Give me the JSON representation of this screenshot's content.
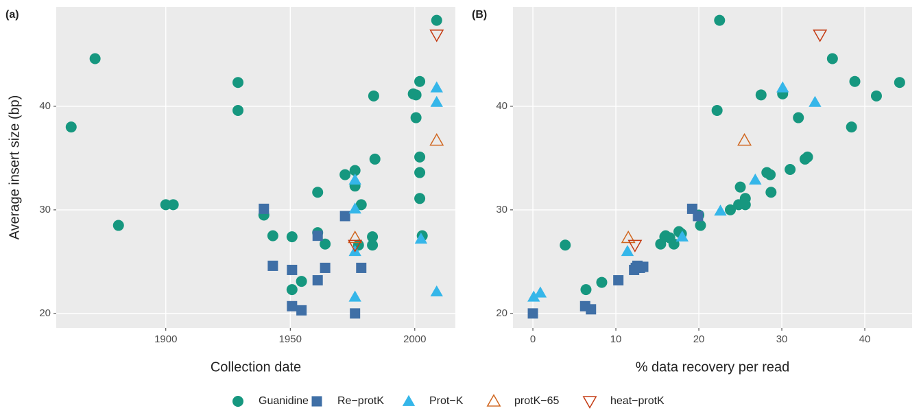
{
  "chart_data": [
    {
      "type": "scatter",
      "title": "(a)",
      "x_label": "Collection date",
      "y_label": "Average insert size (bp)",
      "xlim": [
        1856,
        2016.3
      ],
      "ylim": [
        18.6,
        49.6
      ],
      "xticks": [
        1900,
        1950,
        2000
      ],
      "yticks": [
        20,
        30,
        40
      ],
      "grid": true,
      "series": [
        {
          "name": "Guanidine",
          "color": "#16977f",
          "marker": "circle",
          "x": [
            1862,
            1871.6,
            1881,
            1900,
            1903,
            1929,
            1929,
            1939.4,
            1943,
            1950.7,
            1950.7,
            1954.5,
            1961,
            1961,
            1964,
            1972,
            1976,
            1976,
            1978.5,
            1977.4,
            1983.5,
            1984,
            1983,
            1983,
            1999.4,
            2000.5,
            2000.5,
            2002,
            2002,
            2002,
            2002,
            2003,
            2008.8
          ],
          "values": [
            38.0,
            44.6,
            28.5,
            30.5,
            30.5,
            42.3,
            39.6,
            29.5,
            27.5,
            27.4,
            22.3,
            23.1,
            31.7,
            27.8,
            26.7,
            33.4,
            33.8,
            32.3,
            30.5,
            26.6,
            41.0,
            34.9,
            27.4,
            26.6,
            41.2,
            41.1,
            38.9,
            42.4,
            35.1,
            33.6,
            31.1,
            27.5,
            48.3
          ]
        },
        {
          "name": "Re−protK",
          "color": "#3f6fa6",
          "marker": "square",
          "x": [
            1939.4,
            1943,
            1950.7,
            1950.7,
            1954.5,
            1961,
            1961,
            1964,
            1972,
            1976,
            1978.5
          ],
          "values": [
            30.1,
            24.6,
            24.2,
            20.7,
            20.3,
            27.5,
            23.2,
            24.4,
            29.4,
            20.0,
            24.4
          ]
        },
        {
          "name": "Prot−K",
          "color": "#35b6e9",
          "marker": "triangle",
          "x": [
            1976,
            1976,
            1976,
            1976,
            2002.5,
            2008.8,
            2008.8,
            2008.8
          ],
          "values": [
            32.9,
            30.1,
            26.0,
            21.6,
            27.2,
            41.8,
            40.4,
            22.1
          ]
        },
        {
          "name": "protK−65",
          "color": "#d0661f",
          "marker": "triangle-open",
          "x": [
            1976,
            2008.8
          ],
          "values": [
            27.3,
            36.7
          ]
        },
        {
          "name": "heat−protK",
          "color": "#c43a12",
          "marker": "triangle-down-open",
          "x": [
            1976,
            2008.8
          ],
          "values": [
            26.6,
            46.9
          ]
        }
      ]
    },
    {
      "type": "scatter",
      "title": "(B)",
      "x_label": "% data recovery per read",
      "xlim": [
        -2.4,
        45.7
      ],
      "ylim": [
        18.6,
        49.6
      ],
      "xticks": [
        0,
        10,
        20,
        30,
        40
      ],
      "yticks": [
        20,
        30,
        40
      ],
      "grid": true,
      "series": [
        {
          "name": "Guanidine",
          "color": "#16977f",
          "marker": "circle",
          "x": [
            3.9,
            6.4,
            8.3,
            15.4,
            16,
            17,
            17.9,
            20.2,
            20,
            22.5,
            22.2,
            36.1,
            38.8,
            44.2,
            41.4,
            38.4,
            27.5,
            30.1,
            32.0,
            31.0,
            32.8,
            33.1,
            28.2,
            28.6,
            25.0,
            28.7,
            25.6,
            24.8,
            25.6,
            23.8,
            16.5,
            17.6,
            15.9
          ],
          "values": [
            26.6,
            22.3,
            23.0,
            26.7,
            27.5,
            26.7,
            27.7,
            28.5,
            29.5,
            48.3,
            39.6,
            44.6,
            42.4,
            42.3,
            41.0,
            38.0,
            41.1,
            41.2,
            38.9,
            33.9,
            34.9,
            35.1,
            33.6,
            33.4,
            32.2,
            31.7,
            31.1,
            30.5,
            30.5,
            30.0,
            27.3,
            27.9,
            27.4
          ]
        },
        {
          "name": "Re−protK",
          "color": "#3f6fa6",
          "marker": "square",
          "x": [
            0,
            6.3,
            7.0,
            10.3,
            12.2,
            12.6,
            13.3,
            19.2,
            19.9,
            12.4,
            12.9
          ],
          "values": [
            20.0,
            20.7,
            20.4,
            23.2,
            24.2,
            24.6,
            24.5,
            30.1,
            29.4,
            24.4,
            24.4
          ]
        },
        {
          "name": "Prot−K",
          "color": "#35b6e9",
          "marker": "triangle",
          "x": [
            0.1,
            0.9,
            11.4,
            18.0,
            22.6,
            26.8,
            30.1,
            34.0
          ],
          "values": [
            21.6,
            22.0,
            26.0,
            27.4,
            29.9,
            32.9,
            41.8,
            40.4
          ]
        },
        {
          "name": "protK−65",
          "color": "#d0661f",
          "marker": "triangle-open",
          "x": [
            11.5,
            25.5
          ],
          "values": [
            27.3,
            36.7
          ]
        },
        {
          "name": "heat−protK",
          "color": "#c43a12",
          "marker": "triangle-down-open",
          "x": [
            12.3,
            34.6
          ],
          "values": [
            26.6,
            46.9
          ]
        }
      ]
    }
  ]
}
